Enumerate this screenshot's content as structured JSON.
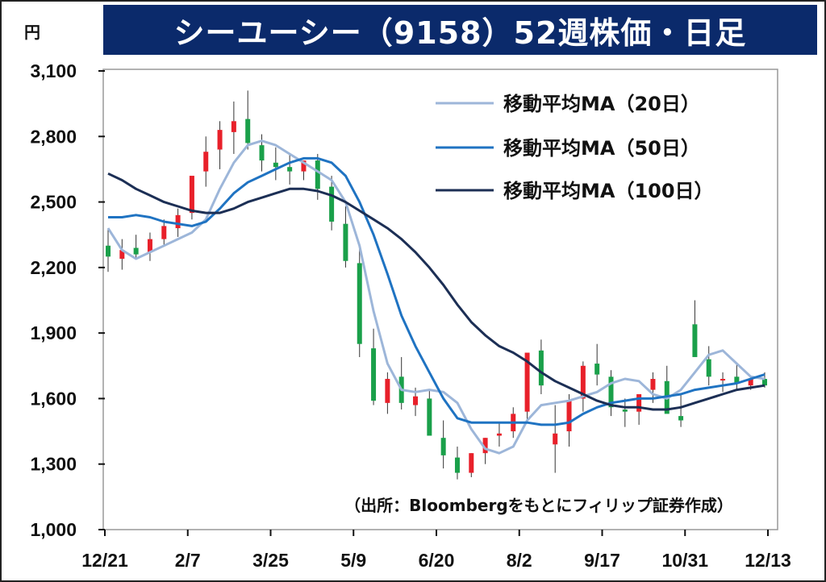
{
  "header": {
    "title": "シーユーシー（9158）52週株価・日足",
    "unit": "円"
  },
  "source_note": "（出所：Bloombergをもとにフィリップ証券作成）",
  "colors": {
    "title_bg": "#0b2a6b",
    "up": "#e8202a",
    "down": "#1aa04a",
    "ma20": "#9db6d9",
    "ma50": "#1f73c2",
    "ma100": "#1c2f55"
  },
  "chart_data": {
    "type": "line",
    "title": "シーユーシー（9158）52週株価・日足",
    "ylabel": "円",
    "ylim": [
      1000,
      3100
    ],
    "yticks": [
      1000,
      1300,
      1600,
      1900,
      2200,
      2500,
      2800,
      3100
    ],
    "ytick_labels": [
      "1,000",
      "1,300",
      "1,600",
      "1,900",
      "2,200",
      "2,500",
      "2,800",
      "3,100"
    ],
    "xtick_labels": [
      "12/21",
      "2/7",
      "3/25",
      "5/9",
      "6/20",
      "8/2",
      "9/17",
      "10/31",
      "12/13"
    ],
    "legend_position": "top-right",
    "grid": false,
    "series": [
      {
        "name": "移動平均MA（20日）",
        "values": [
          2380,
          2280,
          2240,
          2270,
          2300,
          2330,
          2360,
          2420,
          2560,
          2680,
          2760,
          2780,
          2760,
          2720,
          2680,
          2640,
          2600,
          2500,
          2300,
          2000,
          1760,
          1640,
          1630,
          1640,
          1630,
          1580,
          1460,
          1370,
          1350,
          1380,
          1500,
          1570,
          1580,
          1590,
          1610,
          1630,
          1670,
          1690,
          1680,
          1620,
          1600,
          1640,
          1720,
          1800,
          1820,
          1760,
          1700,
          1690
        ]
      },
      {
        "name": "移動平均MA（50日）",
        "values": [
          2430,
          2430,
          2440,
          2430,
          2410,
          2400,
          2390,
          2410,
          2470,
          2540,
          2590,
          2620,
          2650,
          2680,
          2700,
          2700,
          2680,
          2620,
          2500,
          2350,
          2170,
          1980,
          1840,
          1720,
          1600,
          1510,
          1490,
          1490,
          1490,
          1490,
          1490,
          1480,
          1480,
          1490,
          1530,
          1560,
          1580,
          1590,
          1600,
          1600,
          1610,
          1620,
          1640,
          1650,
          1660,
          1670,
          1690,
          1710
        ]
      },
      {
        "name": "移動平均MA（100日）",
        "values": [
          2630,
          2600,
          2560,
          2530,
          2500,
          2480,
          2460,
          2450,
          2450,
          2470,
          2500,
          2520,
          2540,
          2560,
          2560,
          2550,
          2530,
          2500,
          2460,
          2420,
          2380,
          2330,
          2270,
          2200,
          2120,
          2030,
          1950,
          1890,
          1840,
          1810,
          1770,
          1720,
          1680,
          1650,
          1620,
          1590,
          1570,
          1560,
          1560,
          1550,
          1550,
          1560,
          1580,
          1600,
          1620,
          1640,
          1650,
          1660
        ]
      }
    ],
    "candles": {
      "open": [
        2300,
        2240,
        2290,
        2270,
        2330,
        2380,
        2450,
        2640,
        2740,
        2820,
        2880,
        2760,
        2680,
        2660,
        2640,
        2690,
        2570,
        2400,
        2220,
        1830,
        1580,
        1700,
        1570,
        1600,
        1420,
        1330,
        1260,
        1350,
        1430,
        1450,
        1540,
        1820,
        1390,
        1450,
        1600,
        1760,
        1700,
        1550,
        1540,
        1640,
        1680,
        1520,
        1940,
        1780,
        1690,
        1700,
        1660,
        1690
      ],
      "high": [
        2380,
        2330,
        2350,
        2360,
        2420,
        2470,
        2550,
        2800,
        2870,
        2960,
        3010,
        2810,
        2750,
        2720,
        2690,
        2720,
        2620,
        2480,
        2290,
        1920,
        1720,
        1790,
        1650,
        1640,
        1500,
        1380,
        1350,
        1420,
        1490,
        1560,
        1620,
        1870,
        1570,
        1620,
        1770,
        1850,
        1730,
        1600,
        1600,
        1720,
        1750,
        1620,
        2050,
        1840,
        1720,
        1760,
        1700,
        1720
      ],
      "low": [
        2180,
        2190,
        2240,
        2230,
        2300,
        2340,
        2420,
        2570,
        2650,
        2720,
        2740,
        2640,
        2600,
        2580,
        2600,
        2510,
        2370,
        2200,
        1790,
        1570,
        1530,
        1550,
        1520,
        1530,
        1280,
        1230,
        1240,
        1300,
        1380,
        1420,
        1500,
        1620,
        1260,
        1380,
        1540,
        1660,
        1520,
        1470,
        1480,
        1580,
        1600,
        1470,
        1820,
        1660,
        1630,
        1640,
        1640,
        1650
      ],
      "close": [
        2250,
        2280,
        2260,
        2330,
        2390,
        2440,
        2620,
        2730,
        2830,
        2870,
        2770,
        2690,
        2660,
        2640,
        2690,
        2560,
        2410,
        2230,
        1850,
        1590,
        1690,
        1580,
        1610,
        1430,
        1340,
        1260,
        1350,
        1420,
        1440,
        1530,
        1810,
        1660,
        1440,
        1590,
        1750,
        1710,
        1560,
        1540,
        1620,
        1690,
        1530,
        1500,
        1790,
        1700,
        1690,
        1670,
        1690,
        1660
      ]
    }
  }
}
